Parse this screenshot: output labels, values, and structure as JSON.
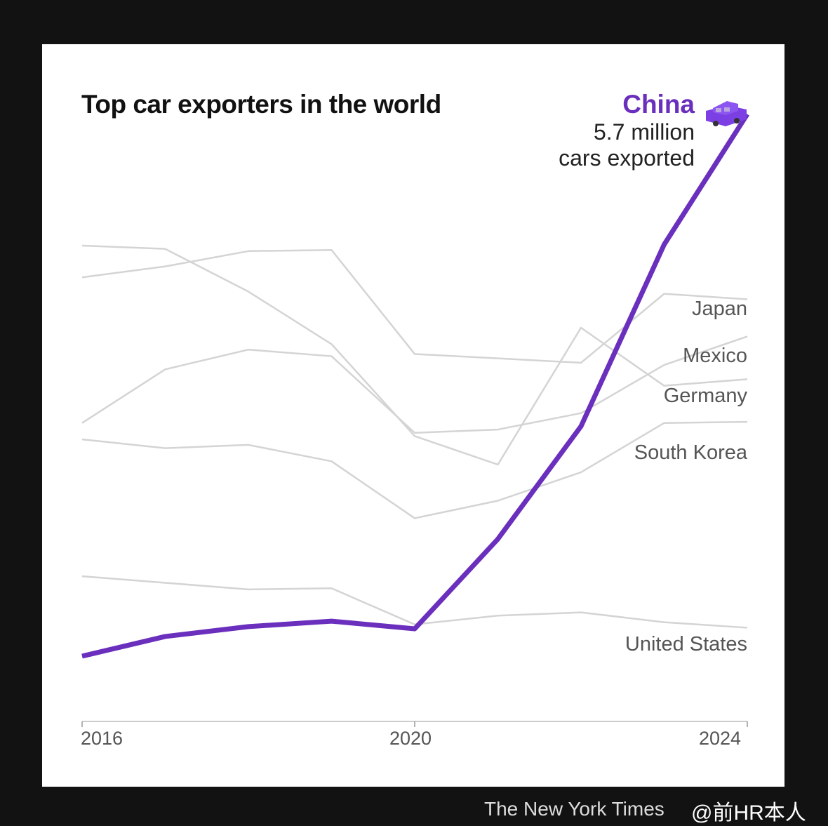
{
  "chart_data": {
    "type": "line",
    "title": "Top car exporters in the world",
    "x": [
      2016,
      2017,
      2018,
      2019,
      2020,
      2021,
      2022,
      2023,
      2024
    ],
    "x_ticks": [
      "2016",
      "2020",
      "2024"
    ],
    "ylim": [
      0,
      6.2
    ],
    "units": "million cars",
    "grid": false,
    "highlight": {
      "series": "China",
      "label": "China",
      "value_text": "5.7 million",
      "value_sub": "cars exported",
      "icon": "car-icon"
    },
    "colors": {
      "highlight": "#6a2fbd",
      "others": "#d4d4d4"
    },
    "series": [
      {
        "name": "China",
        "values": [
          0.75,
          0.93,
          1.02,
          1.07,
          1.0,
          1.82,
          2.85,
          4.51,
          5.7
        ]
      },
      {
        "name": "Japan",
        "values": [
          4.21,
          4.31,
          4.45,
          4.46,
          3.51,
          3.47,
          3.43,
          4.06,
          4.01
        ]
      },
      {
        "name": "Mexico",
        "values": [
          2.88,
          3.37,
          3.55,
          3.49,
          2.79,
          2.82,
          2.97,
          3.41,
          3.67
        ]
      },
      {
        "name": "Germany",
        "values": [
          4.5,
          4.47,
          4.08,
          3.6,
          2.76,
          2.5,
          3.75,
          3.22,
          3.28
        ]
      },
      {
        "name": "South Korea",
        "values": [
          2.73,
          2.65,
          2.68,
          2.53,
          2.01,
          2.17,
          2.43,
          2.88,
          2.89
        ]
      },
      {
        "name": "United States",
        "values": [
          1.48,
          1.42,
          1.36,
          1.37,
          1.04,
          1.12,
          1.15,
          1.06,
          1.01
        ]
      }
    ]
  },
  "credit": "The New York Times",
  "watermark": "@前HR本人"
}
